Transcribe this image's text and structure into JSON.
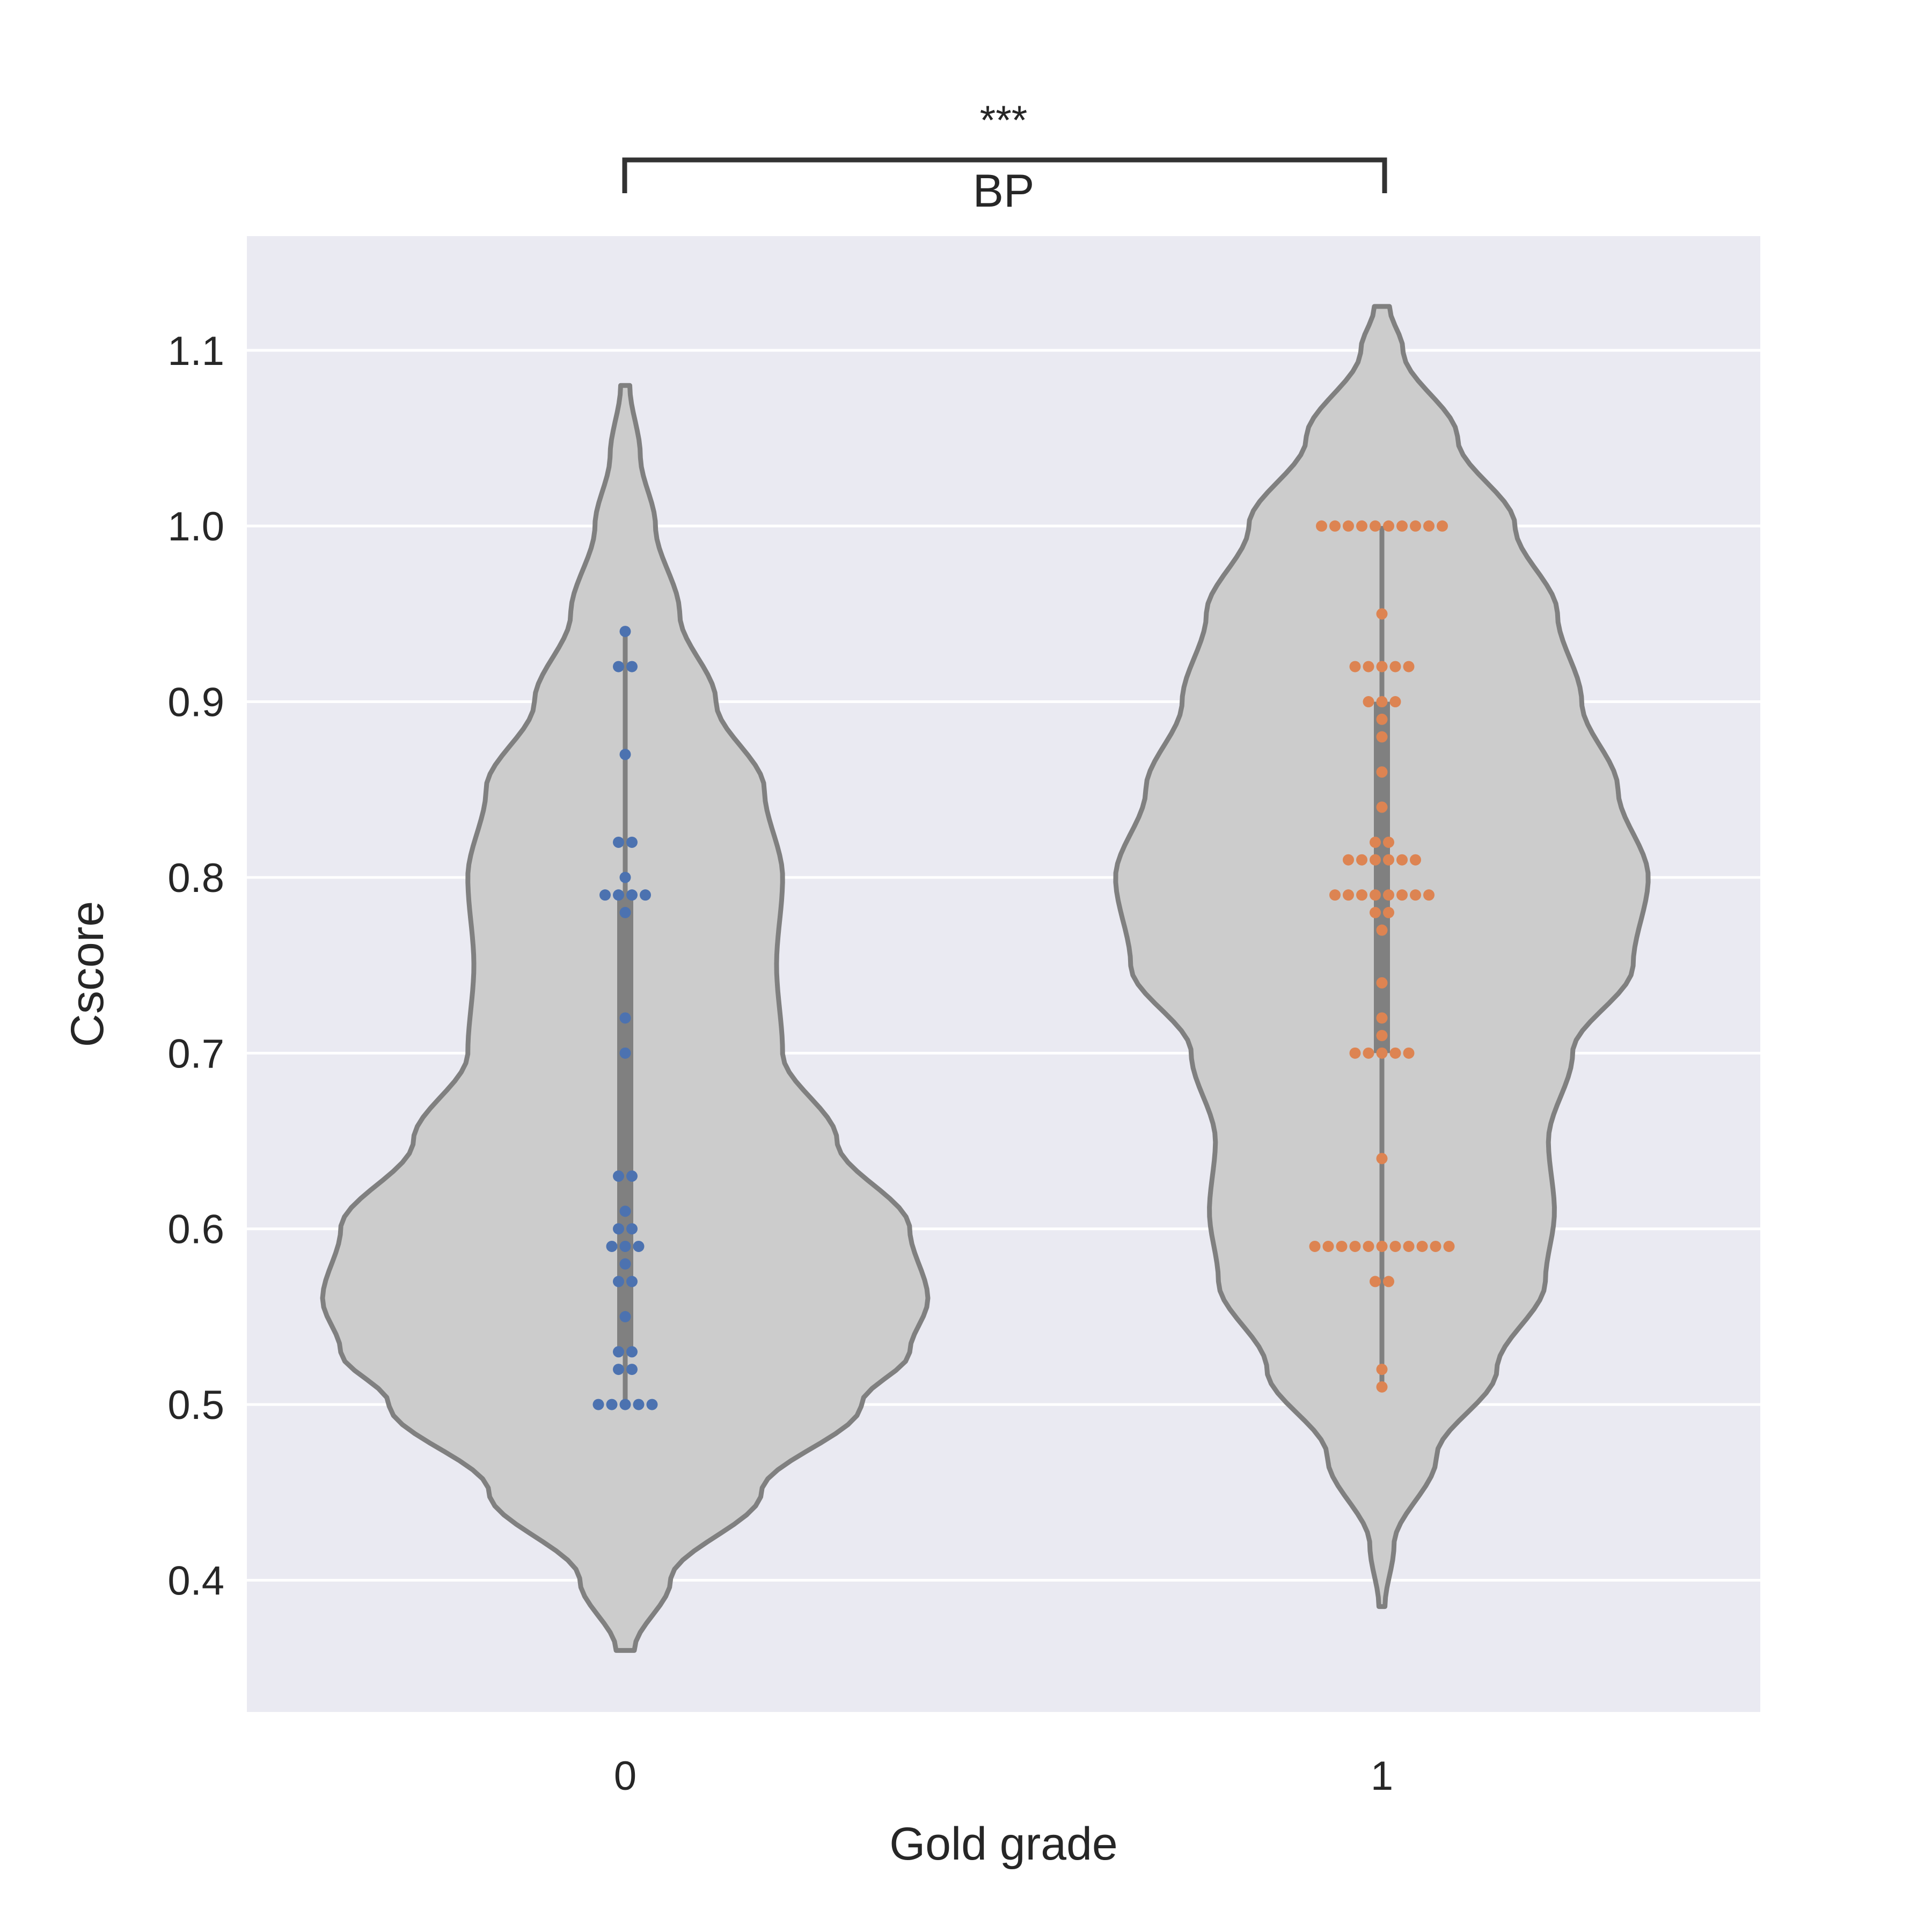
{
  "chart_data": {
    "type": "violin",
    "title": "BP",
    "significance": "***",
    "xlabel": "Gold grade",
    "ylabel": "Cscore",
    "categories": [
      "0",
      "1"
    ],
    "ylim": [
      0.325,
      1.165
    ],
    "yticks": [
      0.4,
      0.5,
      0.6,
      0.7,
      0.8,
      0.9,
      1.0,
      1.1
    ],
    "ytick_labels": [
      "0.4",
      "0.5",
      "0.6",
      "0.7",
      "0.8",
      "0.9",
      "1.0",
      "1.1"
    ],
    "grid": true,
    "legend": "none",
    "colors": {
      "background": "#eaeaf2",
      "grid": "#ffffff",
      "violin_fill": "#cccccc",
      "violin_edge": "#808080",
      "box": "#808080",
      "series_0_points": "#4c72b0",
      "series_1_points": "#dd8452",
      "bracket": "#333333"
    },
    "series": [
      {
        "category": "0",
        "values": [
          0.94,
          0.92,
          0.92,
          0.87,
          0.82,
          0.82,
          0.8,
          0.79,
          0.79,
          0.79,
          0.79,
          0.78,
          0.72,
          0.7,
          0.63,
          0.63,
          0.61,
          0.6,
          0.6,
          0.59,
          0.59,
          0.59,
          0.58,
          0.57,
          0.57,
          0.55,
          0.53,
          0.53,
          0.52,
          0.52,
          0.5,
          0.5,
          0.5,
          0.5,
          0.5
        ],
        "range": [
          0.36,
          1.08
        ],
        "whisker": [
          0.5,
          0.94
        ],
        "iqr": [
          0.53,
          0.79
        ],
        "density": [
          [
            0.36,
            0.03
          ],
          [
            0.4,
            0.15
          ],
          [
            0.45,
            0.45
          ],
          [
            0.5,
            0.78
          ],
          [
            0.53,
            0.94
          ],
          [
            0.56,
            1.0
          ],
          [
            0.6,
            0.94
          ],
          [
            0.65,
            0.7
          ],
          [
            0.7,
            0.52
          ],
          [
            0.75,
            0.5
          ],
          [
            0.8,
            0.52
          ],
          [
            0.85,
            0.46
          ],
          [
            0.9,
            0.3
          ],
          [
            0.95,
            0.18
          ],
          [
            1.0,
            0.1
          ],
          [
            1.04,
            0.05
          ],
          [
            1.08,
            0.015
          ]
        ]
      },
      {
        "category": "1",
        "values": [
          1.0,
          1.0,
          1.0,
          1.0,
          1.0,
          1.0,
          1.0,
          1.0,
          1.0,
          1.0,
          0.95,
          0.92,
          0.92,
          0.92,
          0.92,
          0.92,
          0.9,
          0.9,
          0.9,
          0.89,
          0.88,
          0.86,
          0.84,
          0.82,
          0.82,
          0.81,
          0.81,
          0.81,
          0.81,
          0.81,
          0.81,
          0.79,
          0.79,
          0.79,
          0.79,
          0.79,
          0.79,
          0.79,
          0.79,
          0.78,
          0.78,
          0.77,
          0.74,
          0.72,
          0.71,
          0.7,
          0.7,
          0.7,
          0.7,
          0.7,
          0.64,
          0.59,
          0.59,
          0.59,
          0.59,
          0.59,
          0.59,
          0.59,
          0.59,
          0.59,
          0.59,
          0.59,
          0.57,
          0.57,
          0.52,
          0.51
        ],
        "range": [
          0.385,
          1.125
        ],
        "whisker": [
          0.51,
          1.0
        ],
        "iqr": [
          0.7,
          0.9
        ],
        "density": [
          [
            0.385,
            0.01
          ],
          [
            0.42,
            0.04
          ],
          [
            0.47,
            0.18
          ],
          [
            0.52,
            0.38
          ],
          [
            0.57,
            0.54
          ],
          [
            0.61,
            0.57
          ],
          [
            0.65,
            0.55
          ],
          [
            0.7,
            0.63
          ],
          [
            0.75,
            0.83
          ],
          [
            0.8,
            0.88
          ],
          [
            0.85,
            0.78
          ],
          [
            0.9,
            0.66
          ],
          [
            0.95,
            0.58
          ],
          [
            1.0,
            0.44
          ],
          [
            1.05,
            0.25
          ],
          [
            1.1,
            0.07
          ],
          [
            1.125,
            0.025
          ]
        ]
      }
    ]
  }
}
